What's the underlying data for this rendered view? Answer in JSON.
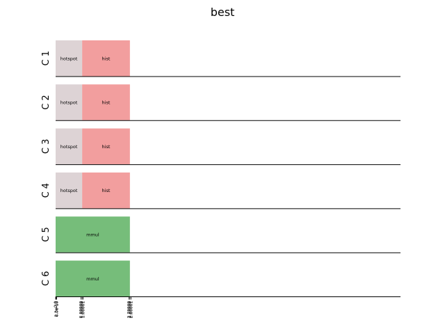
{
  "chart_data": {
    "type": "gantt",
    "title": "best",
    "rows": [
      {
        "label": "C 1",
        "tasks": [
          {
            "name": "hotspot",
            "start": 0,
            "end": 1,
            "color": "#ddd3d5"
          },
          {
            "name": "hist",
            "start": 1,
            "end": 2.8,
            "color": "#f29e9e"
          }
        ]
      },
      {
        "label": "C 2",
        "tasks": [
          {
            "name": "hotspot",
            "start": 0,
            "end": 1,
            "color": "#ddd3d5"
          },
          {
            "name": "hist",
            "start": 1,
            "end": 2.8,
            "color": "#f29e9e"
          }
        ]
      },
      {
        "label": "C 3",
        "tasks": [
          {
            "name": "hotspot",
            "start": 0,
            "end": 1,
            "color": "#ddd3d5"
          },
          {
            "name": "hist",
            "start": 1,
            "end": 2.8,
            "color": "#f29e9e"
          }
        ]
      },
      {
        "label": "C 4",
        "tasks": [
          {
            "name": "hotspot",
            "start": 0,
            "end": 1,
            "color": "#ddd3d5"
          },
          {
            "name": "hist",
            "start": 1,
            "end": 2.8,
            "color": "#f29e9e"
          }
        ]
      },
      {
        "label": "C 5",
        "tasks": [
          {
            "name": "mmul",
            "start": 0,
            "end": 2.8,
            "color": "#76bd7a"
          }
        ]
      },
      {
        "label": "C 6",
        "tasks": [
          {
            "name": "mmul",
            "start": 0,
            "end": 2.8,
            "color": "#76bd7a"
          }
        ]
      }
    ],
    "xlim": [
      0,
      13
    ],
    "x_ticks": [
      {
        "value": 0,
        "label": "0.0"
      },
      {
        "value": 0.02,
        "label": "2.3e-10"
      },
      {
        "value": 0.04,
        "label": "6.0e-10"
      },
      {
        "value": 0.96,
        "label": "0.99999"
      },
      {
        "value": 1.0,
        "label": "1.00000"
      },
      {
        "value": 1.04,
        "label": "1.00001"
      },
      {
        "value": 2.76,
        "label": "2.79999"
      },
      {
        "value": 2.8,
        "label": "2.80000"
      },
      {
        "value": 2.84,
        "label": "2.80001"
      }
    ]
  }
}
